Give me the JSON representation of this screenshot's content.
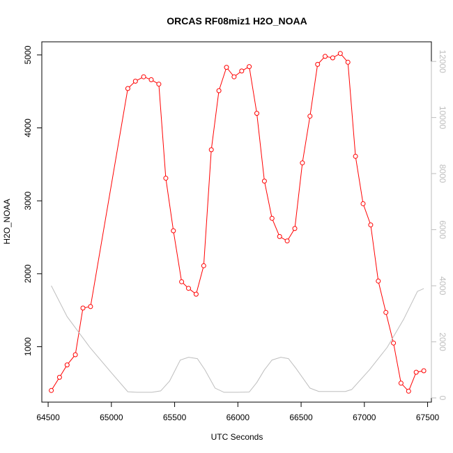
{
  "chart_data": {
    "type": "line",
    "title": "ORCAS RF08miz1 H2O_NOAA",
    "xlabel": "UTC Seconds",
    "ylabel": "H2O_NOAA",
    "xlim": [
      64450,
      67530
    ],
    "ylim": [
      240,
      5180
    ],
    "y2lim": [
      -150,
      12700
    ],
    "x_ticks": [
      64500,
      65000,
      65500,
      66000,
      66500,
      67000,
      67500
    ],
    "y_ticks": [
      1000,
      2000,
      3000,
      4000,
      5000
    ],
    "y2_ticks": [
      0,
      2000,
      4000,
      6000,
      8000,
      10000,
      12000
    ],
    "colors": {
      "primary": "#ff0000",
      "secondary": "#bebebe",
      "axis": "#000000"
    },
    "series": [
      {
        "axis": "left",
        "style": "line+points",
        "x": [
          64525,
          64590,
          64650,
          64715,
          64775,
          64835,
          65130,
          65190,
          65255,
          65315,
          65375,
          65430,
          65490,
          65555,
          65610,
          65670,
          65730,
          65790,
          65850,
          65910,
          65970,
          66030,
          66090,
          66150,
          66210,
          66270,
          66330,
          66390,
          66450,
          66510,
          66570,
          66630,
          66690,
          66750,
          66810,
          66870,
          66930,
          66990,
          67050,
          67110,
          67170,
          67230,
          67290,
          67350,
          67410,
          67470
        ],
        "y": [
          400,
          580,
          750,
          890,
          1530,
          1550,
          4540,
          4640,
          4700,
          4660,
          4600,
          3310,
          2590,
          1890,
          1800,
          1720,
          2110,
          3700,
          4510,
          4830,
          4700,
          4780,
          4840,
          4200,
          3270,
          2760,
          2510,
          2450,
          2620,
          3520,
          4160,
          4870,
          4980,
          4960,
          5020,
          4900,
          3610,
          2960,
          2670,
          1900,
          1470,
          1050,
          500,
          390,
          650,
          670
        ]
      },
      {
        "axis": "right",
        "style": "line",
        "x": [
          64525,
          64650,
          64830,
          65000,
          65130,
          65200,
          65320,
          65390,
          65460,
          65545,
          65610,
          65680,
          65740,
          65820,
          65890,
          66000,
          66090,
          66150,
          66210,
          66270,
          66340,
          66400,
          66460,
          66570,
          66640,
          66760,
          66850,
          66900,
          67040,
          67180,
          67310,
          67420,
          67470
        ],
        "y": [
          4000,
          2900,
          1800,
          900,
          220,
          200,
          200,
          250,
          600,
          1350,
          1450,
          1400,
          1000,
          350,
          200,
          200,
          210,
          550,
          1000,
          1350,
          1450,
          1400,
          1050,
          350,
          230,
          230,
          230,
          300,
          1000,
          1800,
          2800,
          3800,
          3900
        ]
      }
    ]
  }
}
